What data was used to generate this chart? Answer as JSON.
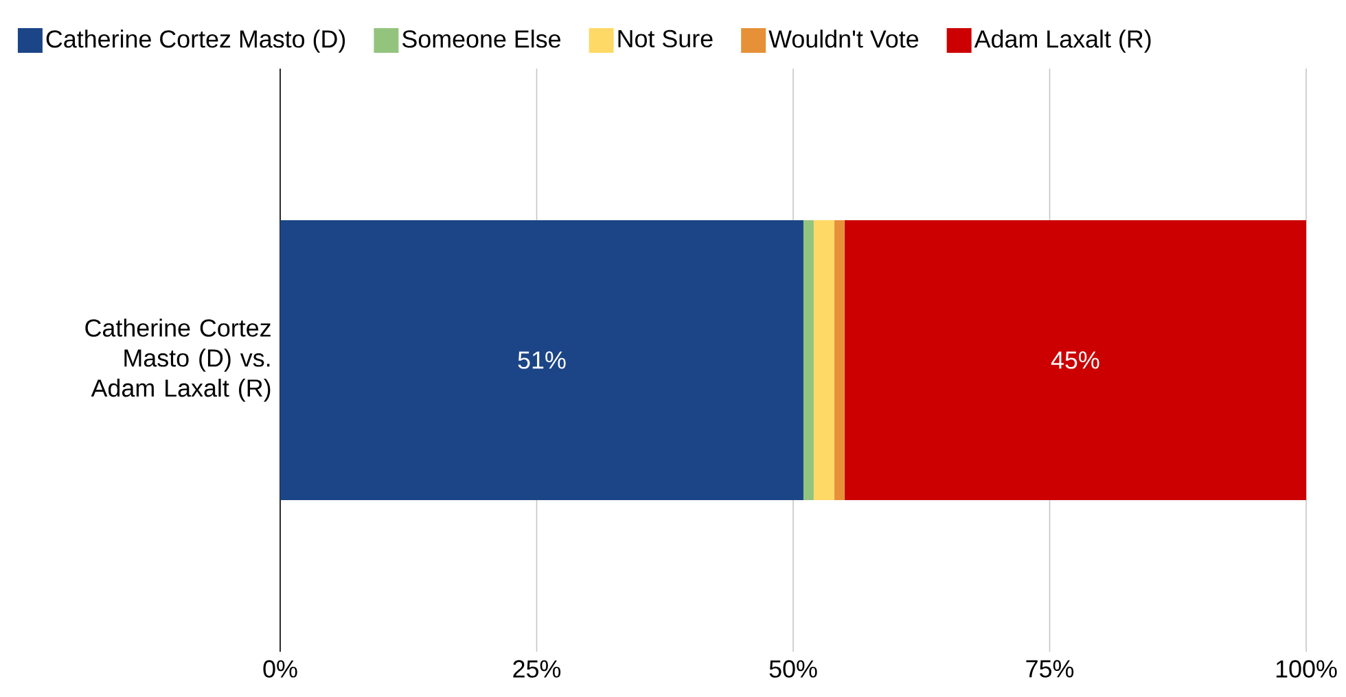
{
  "chart_data": {
    "type": "bar",
    "orientation": "horizontal",
    "stacked": true,
    "categories": [
      "Catherine Cortez Masto (D) vs. Adam Laxalt (R)"
    ],
    "series": [
      {
        "name": "Catherine Cortez Masto (D)",
        "color": "#1c4587",
        "values": [
          51
        ],
        "value_labels": [
          "51%"
        ]
      },
      {
        "name": "Someone Else",
        "color": "#93c47d",
        "values": [
          1
        ],
        "value_labels": [
          null
        ]
      },
      {
        "name": "Not Sure",
        "color": "#ffd966",
        "values": [
          2
        ],
        "value_labels": [
          null
        ]
      },
      {
        "name": "Wouldn't Vote",
        "color": "#e69138",
        "values": [
          1
        ],
        "value_labels": [
          null
        ]
      },
      {
        "name": "Adam Laxalt (R)",
        "color": "#cc0000",
        "values": [
          45
        ],
        "value_labels": [
          "45%"
        ]
      }
    ],
    "xlim": [
      0,
      100
    ],
    "xticks": [
      {
        "value": 0,
        "label": "0%"
      },
      {
        "value": 25,
        "label": "25%"
      },
      {
        "value": 50,
        "label": "50%"
      },
      {
        "value": 75,
        "label": "75%"
      },
      {
        "value": 100,
        "label": "100%"
      }
    ],
    "grid": "x",
    "legend": "top"
  }
}
